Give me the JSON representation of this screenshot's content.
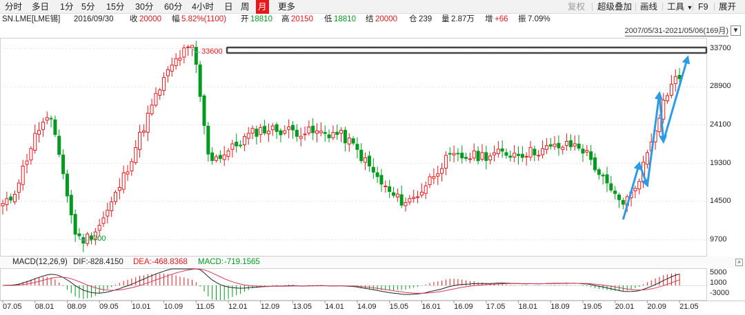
{
  "toolbar": {
    "periods": [
      "分时",
      "多日",
      "1分",
      "5分",
      "15分",
      "30分",
      "60分",
      "4小时",
      "日",
      "周",
      "月",
      "更多"
    ],
    "active_period": "月",
    "right_tools": [
      "复权",
      "超级叠加",
      "画线",
      "工具",
      "F9",
      "展开"
    ]
  },
  "infobar": {
    "symbol": "SN.LME[LME锡]",
    "date": "2016/09/30",
    "close_label": "收",
    "close_value": "20000",
    "change_label": "幅",
    "change_value": "5.82%(1100)",
    "open_label": "开",
    "open_value": "18810",
    "high_label": "高",
    "high_value": "20150",
    "low_label": "低",
    "low_value": "18810",
    "settle_label": "结",
    "settle_value": "20000",
    "oi_label": "仓",
    "oi_value": "239",
    "volume_label": "量",
    "volume_value": "2.87万",
    "increase_label": "增",
    "increase_value": "+66",
    "amplitude_label": "振",
    "amplitude_value": "7.09%"
  },
  "range_label": "2007/05/31-2021/05/06(169月)",
  "price_axis": [
    "33700",
    "28900",
    "24100",
    "19300",
    "14500",
    "9700"
  ],
  "time_axis": [
    "07.05",
    "08.01",
    "08.09",
    "09.05",
    "10.01",
    "10.09",
    "11.05",
    "12.01",
    "12.09",
    "13.05",
    "14.01",
    "14.09",
    "15.05",
    "16.01",
    "16.09",
    "17.05",
    "18.01",
    "18.09",
    "19.05",
    "20.01",
    "20.09",
    "21.05"
  ],
  "annotations": {
    "high": "33600",
    "low": "9700"
  },
  "macd": {
    "title": "MACD(12,26,9)",
    "dif_label": "DIF:",
    "dif_value": "-828.4150",
    "dea_label": "DEA:",
    "dea_value": "-468.8368",
    "macd_label": "MACD:",
    "macd_value": "-719.1565",
    "axis": [
      "5000",
      "1000",
      "-3000"
    ]
  },
  "colors": {
    "up": "#e8171c",
    "down": "#009a1e",
    "dif": "#222222",
    "dea": "#d83a5a",
    "arrow": "#2c9be6",
    "active": "#e8171c"
  },
  "chart_data": {
    "type": "candlestick",
    "instrument": "SN.LME[LME锡]",
    "ylim": [
      9000,
      34500
    ],
    "key_points": [
      {
        "date": "2007.05",
        "close": 14000
      },
      {
        "date": "2008.04",
        "close": 24500
      },
      {
        "date": "2008.12",
        "low": 9700
      },
      {
        "date": "2011.04",
        "high": 33600
      },
      {
        "date": "2011.09",
        "close": 20000
      },
      {
        "date": "2012.10",
        "close": 23500
      },
      {
        "date": "2014.03",
        "close": 23000
      },
      {
        "date": "2015.09",
        "close": 14500
      },
      {
        "date": "2016.09",
        "close": 20000
      },
      {
        "date": "2017.12",
        "close": 20500
      },
      {
        "date": "2019.03",
        "close": 21500
      },
      {
        "date": "2020.03",
        "close": 14500
      },
      {
        "date": "2021.05",
        "close": 30000
      }
    ]
  }
}
